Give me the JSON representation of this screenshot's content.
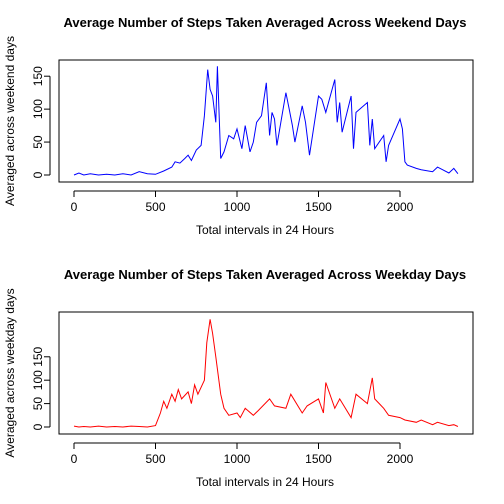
{
  "chart_data": [
    {
      "type": "line",
      "title": "Average Number of Steps Taken Averaged Across Weekend Days",
      "xlabel": "Total intervals in 24 Hours",
      "ylabel": "Averaged across weekend days",
      "xlim": [
        0,
        2355
      ],
      "ylim": [
        0,
        167
      ],
      "xticks": [
        0,
        500,
        1000,
        1500,
        2000
      ],
      "yticks": [
        0,
        50,
        100,
        150
      ],
      "grid": false,
      "color": "#0000ff",
      "series": [
        {
          "x": [
            0,
            30,
            60,
            100,
            150,
            200,
            250,
            300,
            350,
            400,
            450,
            500,
            550,
            600,
            620,
            650,
            680,
            700,
            720,
            750,
            780,
            800,
            820,
            835,
            850,
            870,
            880,
            900,
            920,
            950,
            980,
            1000,
            1030,
            1050,
            1080,
            1100,
            1120,
            1150,
            1180,
            1200,
            1215,
            1230,
            1245,
            1300,
            1320,
            1340,
            1355,
            1400,
            1420,
            1445,
            1500,
            1520,
            1545,
            1600,
            1615,
            1630,
            1645,
            1700,
            1715,
            1730,
            1800,
            1815,
            1830,
            1845,
            1900,
            1915,
            1930,
            2000,
            2015,
            2030,
            2045,
            2100,
            2130,
            2200,
            2230,
            2300,
            2330,
            2355
          ],
          "y": [
            0,
            3,
            0,
            2,
            0,
            1,
            0,
            2,
            0,
            5,
            2,
            1,
            6,
            12,
            20,
            18,
            25,
            30,
            22,
            38,
            45,
            90,
            160,
            130,
            120,
            80,
            165,
            25,
            35,
            60,
            55,
            70,
            40,
            75,
            35,
            50,
            80,
            90,
            140,
            60,
            95,
            85,
            45,
            125,
            100,
            75,
            50,
            105,
            80,
            30,
            120,
            115,
            95,
            145,
            80,
            110,
            65,
            120,
            40,
            95,
            110,
            45,
            85,
            40,
            60,
            20,
            45,
            85,
            70,
            20,
            15,
            10,
            8,
            5,
            12,
            3,
            10,
            2
          ]
        }
      ]
    },
    {
      "type": "line",
      "title": "Average Number of Steps Taken Averaged Across Weekday Days",
      "xlabel": "Total intervals in 24 Hours",
      "ylabel": "Averaged across weekday days",
      "xlim": [
        0,
        2355
      ],
      "ylim": [
        0,
        235
      ],
      "xticks": [
        0,
        500,
        1000,
        1500,
        2000
      ],
      "yticks": [
        0,
        50,
        100,
        150
      ],
      "grid": false,
      "color": "#ff0000",
      "series": [
        {
          "x": [
            0,
            30,
            60,
            100,
            150,
            200,
            250,
            300,
            350,
            400,
            450,
            500,
            530,
            550,
            570,
            600,
            620,
            640,
            660,
            700,
            720,
            740,
            760,
            800,
            815,
            835,
            850,
            870,
            900,
            920,
            950,
            1000,
            1020,
            1050,
            1100,
            1130,
            1200,
            1230,
            1300,
            1330,
            1400,
            1430,
            1500,
            1530,
            1545,
            1600,
            1630,
            1700,
            1730,
            1800,
            1830,
            1845,
            1900,
            1930,
            2000,
            2030,
            2100,
            2130,
            2200,
            2230,
            2300,
            2330,
            2355
          ],
          "y": [
            2,
            0,
            1,
            0,
            2,
            0,
            1,
            0,
            2,
            1,
            0,
            3,
            30,
            55,
            40,
            70,
            55,
            80,
            60,
            75,
            50,
            90,
            70,
            100,
            180,
            230,
            200,
            150,
            70,
            40,
            25,
            30,
            20,
            40,
            25,
            35,
            60,
            45,
            40,
            70,
            30,
            45,
            60,
            30,
            95,
            40,
            60,
            20,
            70,
            50,
            105,
            60,
            40,
            25,
            20,
            15,
            10,
            15,
            5,
            10,
            3,
            5,
            1
          ]
        }
      ]
    }
  ]
}
